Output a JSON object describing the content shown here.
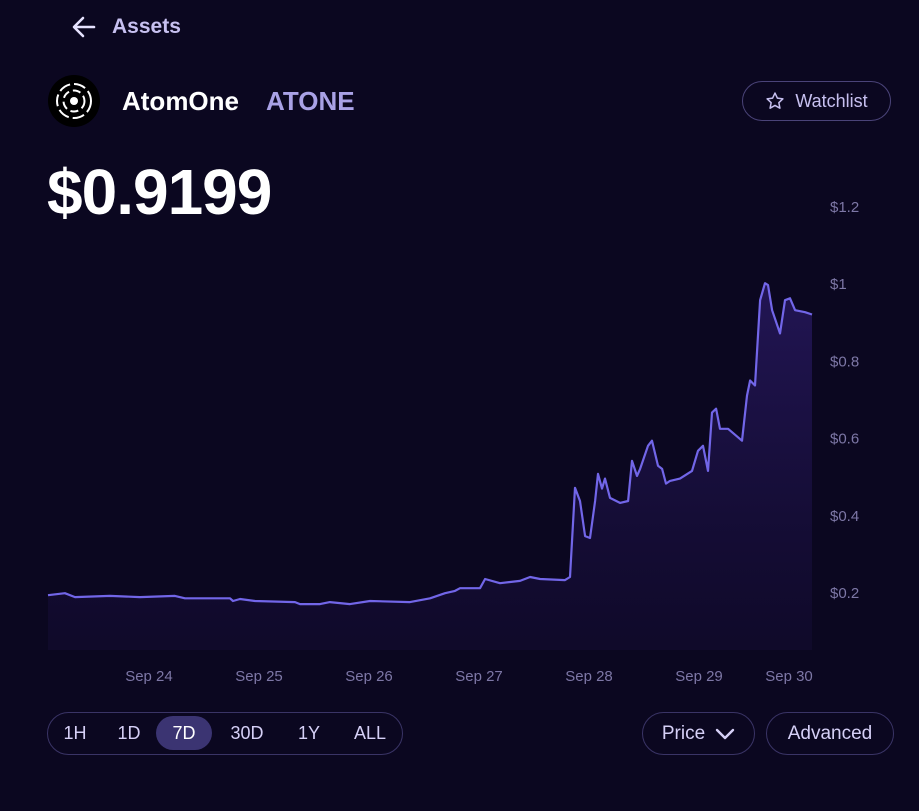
{
  "header": {
    "back": "Assets",
    "name": "AtomOne",
    "symbol": "ATONE",
    "watchlist": "Watchlist",
    "price": "$0.9199"
  },
  "chart_data": {
    "type": "area",
    "x": [
      0.082,
      0.236,
      0.327,
      0.645,
      0.918,
      1.236,
      1.327,
      1.736,
      1.764,
      1.827,
      1.964,
      2.327,
      2.373,
      2.555,
      2.645,
      2.827,
      3.009,
      3.373,
      3.555,
      3.691,
      3.782,
      3.827,
      4.009,
      4.055,
      4.191,
      4.373,
      4.464,
      4.555,
      4.782,
      4.827,
      4.873,
      4.918,
      4.964,
      5.009,
      5.055,
      5.082,
      5.118,
      5.145,
      5.191,
      5.282,
      5.355,
      5.391,
      5.436,
      5.464,
      5.536,
      5.573,
      5.627,
      5.664,
      5.7,
      5.736,
      5.827,
      5.936,
      5.991,
      6.036,
      6.082,
      6.118,
      6.155,
      6.191,
      6.264,
      6.391,
      6.436,
      6.464,
      6.509,
      6.555,
      6.6,
      6.627,
      6.664,
      6.736,
      6.782,
      6.827,
      6.873,
      6.964,
      7.027
    ],
    "values": [
      0.192,
      0.197,
      0.187,
      0.19,
      0.187,
      0.19,
      0.184,
      0.184,
      0.177,
      0.182,
      0.177,
      0.174,
      0.169,
      0.169,
      0.174,
      0.169,
      0.177,
      0.174,
      0.184,
      0.197,
      0.203,
      0.21,
      0.21,
      0.234,
      0.223,
      0.229,
      0.239,
      0.234,
      0.231,
      0.239,
      0.47,
      0.436,
      0.345,
      0.34,
      0.436,
      0.506,
      0.468,
      0.494,
      0.444,
      0.431,
      0.436,
      0.54,
      0.501,
      0.519,
      0.579,
      0.592,
      0.527,
      0.519,
      0.481,
      0.488,
      0.494,
      0.514,
      0.566,
      0.579,
      0.514,
      0.665,
      0.675,
      0.623,
      0.623,
      0.592,
      0.709,
      0.748,
      0.735,
      0.956,
      1.0,
      0.995,
      0.93,
      0.87,
      0.956,
      0.961,
      0.93,
      0.925,
      0.919
    ],
    "color": "#7266e8",
    "xlim": [
      0.082,
      7.027
    ],
    "xticks": [
      {
        "value": 1,
        "label": "Sep 24"
      },
      {
        "value": 2,
        "label": "Sep 25"
      },
      {
        "value": 3,
        "label": "Sep 26"
      },
      {
        "value": 4,
        "label": "Sep 27"
      },
      {
        "value": 5,
        "label": "Sep 28"
      },
      {
        "value": 6,
        "label": "Sep 29"
      },
      {
        "value": 7,
        "label": "Sep 30"
      }
    ],
    "ylim": [
      0.05,
      1.2
    ],
    "yticks": [
      {
        "value": 0.2,
        "label": "$0.2"
      },
      {
        "value": 0.4,
        "label": "$0.4"
      },
      {
        "value": 0.6,
        "label": "$0.6"
      },
      {
        "value": 0.8,
        "label": "$0.8"
      },
      {
        "value": 1,
        "label": "$1"
      },
      {
        "value": 1.2,
        "label": "$1.2"
      }
    ],
    "grid": false
  },
  "controls": {
    "ranges": [
      "1H",
      "1D",
      "7D",
      "30D",
      "1Y",
      "ALL"
    ],
    "selected": 2,
    "metric": "Price",
    "advanced": "Advanced"
  }
}
